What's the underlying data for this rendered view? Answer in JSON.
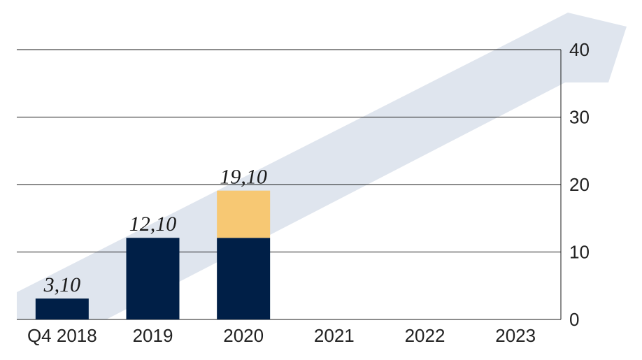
{
  "chart_data": {
    "type": "bar",
    "stacked": true,
    "categories": [
      "Q4 2018",
      "2019",
      "2020",
      "2021",
      "2022",
      "2023"
    ],
    "series": [
      {
        "values": [
          3.1,
          12.1,
          12.1,
          null,
          null,
          null
        ],
        "color": "#001f47"
      },
      {
        "values": [
          0,
          0,
          7.0,
          null,
          null,
          null
        ],
        "color": "#f7c873"
      }
    ],
    "data_labels": [
      "3,10",
      "12,10",
      "19,10",
      "",
      "",
      ""
    ],
    "totals": [
      3.1,
      12.1,
      19.1,
      null,
      null,
      null
    ],
    "ylim": [
      0,
      40
    ],
    "yticks": [
      0,
      10,
      20,
      30,
      40
    ],
    "y_axis_position": "right",
    "grid": true,
    "legend": "none",
    "background_arrow_color": "#dfe5ee",
    "title": "",
    "xlabel": "",
    "ylabel": ""
  }
}
